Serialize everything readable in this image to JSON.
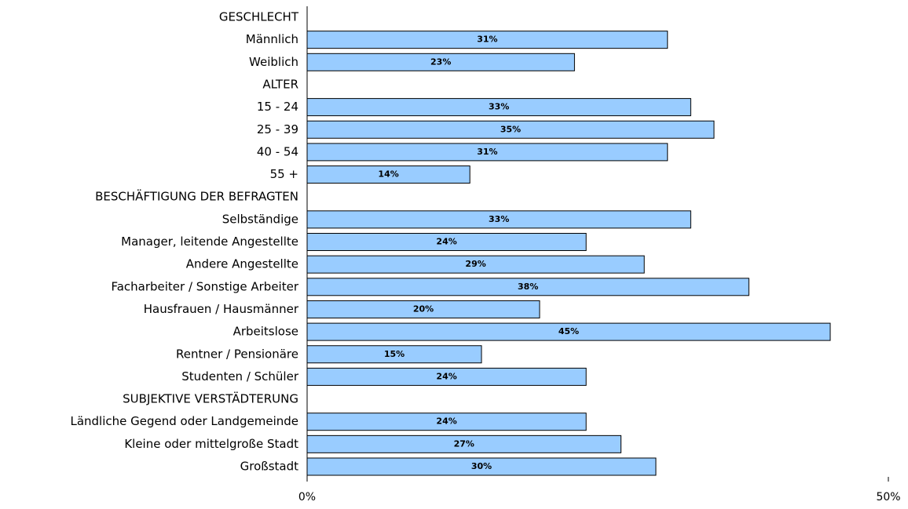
{
  "chart_data": {
    "type": "barh",
    "categories": [
      "GESCHLECHT",
      "Männlich",
      "Weiblich",
      "ALTER",
      "15 - 24",
      "25 - 39",
      "40 - 54",
      "55 +",
      "BESCHÄFTIGUNG DER BEFRAGTEN",
      "Selbständige",
      "Manager, leitende Angestellte",
      "Andere Angestellte",
      "Facharbeiter / Sonstige Arbeiter",
      "Hausfrauen / Hausmänner",
      "Arbeitslose",
      "Rentner / Pensionäre",
      "Studenten / Schüler",
      "SUBJEKTIVE VERSTÄDTERUNG",
      "Ländliche Gegend oder Landgemeinde",
      "Kleine oder mittelgroße Stadt",
      "Großstadt"
    ],
    "values": [
      null,
      31,
      23,
      null,
      33,
      35,
      31,
      14,
      null,
      33,
      24,
      29,
      38,
      20,
      45,
      15,
      24,
      null,
      24,
      27,
      30
    ],
    "value_labels": [
      null,
      "31%",
      "23%",
      null,
      "33%",
      "35%",
      "31%",
      "14%",
      null,
      "33%",
      "24%",
      "29%",
      "38%",
      "20%",
      "45%",
      "15%",
      "24%",
      null,
      "24%",
      "27%",
      "30%"
    ],
    "color": "#99ccff",
    "xlim": [
      0,
      50
    ],
    "xticks": [
      {
        "value": 0,
        "label": "0%"
      },
      {
        "value": 50,
        "label": "50%"
      }
    ]
  }
}
